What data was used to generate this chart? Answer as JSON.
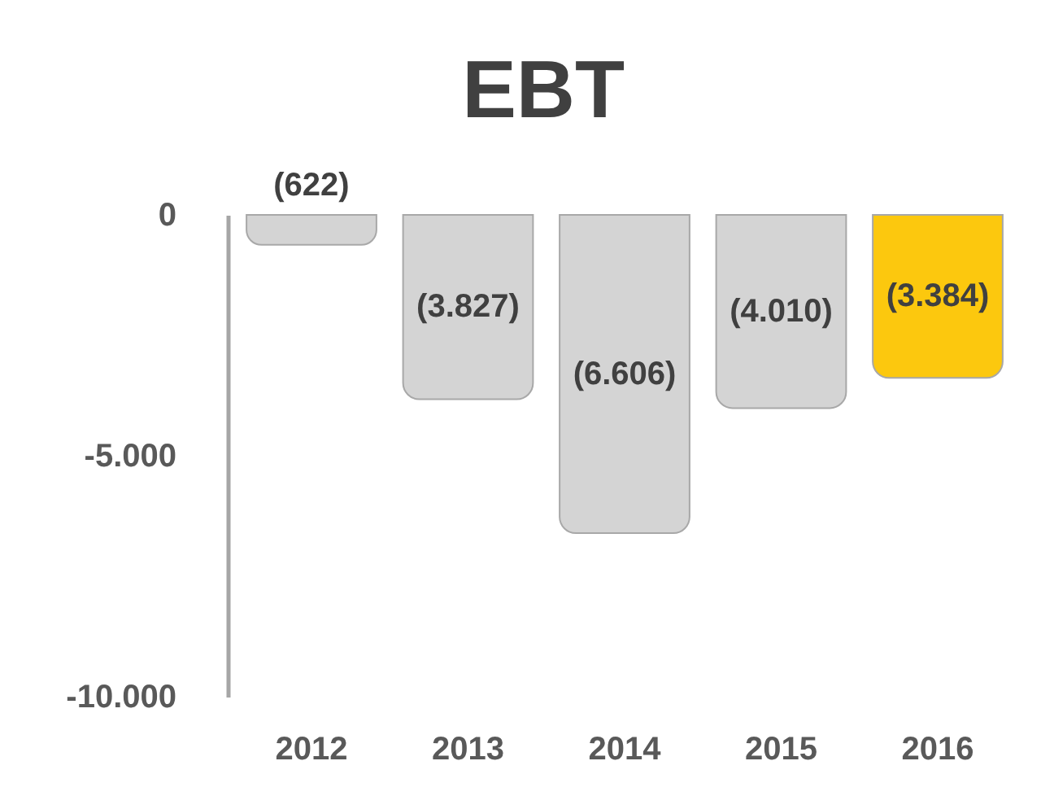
{
  "chart_data": {
    "type": "bar",
    "title": "EBT",
    "categories": [
      "2012",
      "2013",
      "2014",
      "2015",
      "2016"
    ],
    "values": [
      -622,
      -3827,
      -6606,
      -4010,
      -3384
    ],
    "colors": [
      "#d4d4d4",
      "#d4d4d4",
      "#d4d4d4",
      "#d4d4d4",
      "#fcc80e"
    ],
    "value_labels": [
      "(622)",
      "(3.827)",
      "(6.606)",
      "(4.010)",
      "(3.384)"
    ],
    "ylim": [
      -10000,
      0
    ],
    "yticks": [
      0,
      {
        "value": -5000,
        "label": "-5.000"
      },
      {
        "value": -10000,
        "label": "-10.000"
      }
    ]
  }
}
